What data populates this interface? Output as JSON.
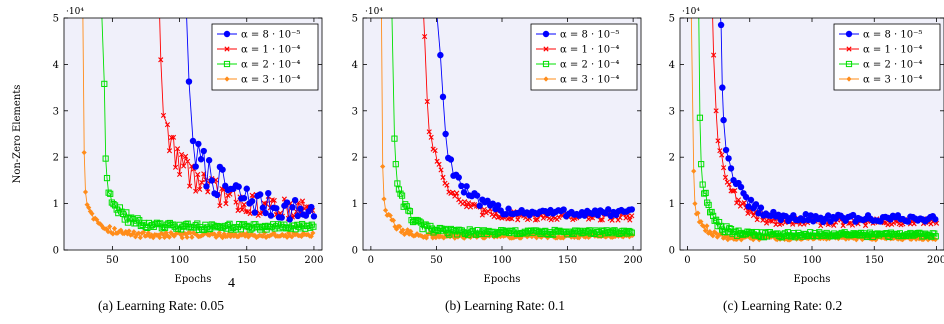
{
  "page_number": "4",
  "shared": {
    "ylabel": "Non-Zero Elements",
    "xlabel": "Epochs",
    "y_exponent": "·10⁴",
    "y_tick_labels": [
      "0",
      "1",
      "2",
      "3",
      "4",
      "5"
    ]
  },
  "colors": {
    "blue": "#0000ff",
    "red": "#ff0000",
    "green": "#00e000",
    "orange": "#ff8c1a",
    "plot_bg": "#f0f0fa"
  },
  "chart_data": [
    {
      "type": "line",
      "caption": "(a) Learning Rate: 0.05",
      "xlabel": "Epochs",
      "ylabel": "Non-Zero Elements",
      "y_multiplier": "10^4",
      "xlim": [
        14,
        206
      ],
      "ylim": [
        0,
        5
      ],
      "x_ticks": [
        50,
        100,
        150,
        200
      ],
      "y_ticks": [
        0,
        1,
        2,
        3,
        4,
        5
      ],
      "legend_position": "top-right",
      "series": [
        {
          "name": "α = 8 · 10⁻⁵",
          "color": "blue",
          "marker": "circle",
          "start": 105,
          "start_y": 5.2,
          "end_y": 0.75,
          "k": 30,
          "noise": 0.22,
          "spike": [
            [
              107,
              3.63
            ],
            [
              110,
              2.35
            ]
          ]
        },
        {
          "name": "α = 1 · 10⁻⁴",
          "color": "red",
          "marker": "x",
          "start": 85,
          "start_y": 5.2,
          "end_y": 0.85,
          "k": 26,
          "noise": 0.2,
          "spike": [
            [
              86,
              4.1
            ],
            [
              88,
              2.9
            ],
            [
              91,
              2.7
            ]
          ]
        },
        {
          "name": "α = 2 · 10⁻⁴",
          "color": "green",
          "marker": "square",
          "start": 42,
          "start_y": 5.2,
          "end_y": 0.5,
          "k": 10,
          "noise": 0.06,
          "spike": [
            [
              44,
              3.58
            ],
            [
              45,
              1.97
            ],
            [
              46,
              1.55
            ]
          ]
        },
        {
          "name": "α = 3 · 10⁻⁴",
          "color": "orange",
          "marker": "diamond",
          "start": 28,
          "start_y": 5.2,
          "end_y": 0.32,
          "k": 10,
          "noise": 0.05,
          "spike": [
            [
              29,
              2.1
            ],
            [
              30,
              1.25
            ]
          ]
        }
      ]
    },
    {
      "type": "line",
      "caption": "(b) Learning Rate: 0.1",
      "xlabel": "Epochs",
      "ylabel": "",
      "y_multiplier": "10^4",
      "xlim": [
        -6,
        206
      ],
      "ylim": [
        0,
        5
      ],
      "x_ticks": [
        0,
        50,
        100,
        150,
        200
      ],
      "y_ticks": [
        0,
        1,
        2,
        3,
        4,
        5
      ],
      "legend_position": "top-right",
      "series": [
        {
          "name": "α = 8 · 10⁻⁵",
          "color": "blue",
          "marker": "circle",
          "start": 50,
          "start_y": 5.2,
          "end_y": 0.8,
          "k": 14,
          "noise": 0.08,
          "spike": [
            [
              53,
              4.2
            ],
            [
              55,
              3.3
            ],
            [
              57,
              2.5
            ]
          ]
        },
        {
          "name": "α = 1 · 10⁻⁴",
          "color": "red",
          "marker": "x",
          "start": 40,
          "start_y": 5.2,
          "end_y": 0.72,
          "k": 14,
          "noise": 0.08,
          "spike": [
            [
              41,
              4.6
            ],
            [
              43,
              3.2
            ]
          ]
        },
        {
          "name": "α = 2 · 10⁻⁴",
          "color": "green",
          "marker": "square",
          "start": 16,
          "start_y": 5.2,
          "end_y": 0.38,
          "k": 9,
          "noise": 0.05,
          "spike": [
            [
              18,
              2.4
            ],
            [
              19,
              1.85
            ]
          ]
        },
        {
          "name": "α = 3 · 10⁻⁴",
          "color": "orange",
          "marker": "diamond",
          "start": 8,
          "start_y": 5.2,
          "end_y": 0.3,
          "k": 8,
          "noise": 0.04,
          "spike": [
            [
              9,
              1.8
            ],
            [
              10,
              1.1
            ]
          ]
        }
      ]
    },
    {
      "type": "line",
      "caption": "(c) Learning Rate: 0.2",
      "xlabel": "Epochs",
      "ylabel": "",
      "y_multiplier": "10^4",
      "xlim": [
        -6,
        206
      ],
      "ylim": [
        0,
        5
      ],
      "x_ticks": [
        0,
        50,
        100,
        150,
        200
      ],
      "y_ticks": [
        0,
        1,
        2,
        3,
        4,
        5
      ],
      "legend_position": "top-right",
      "series": [
        {
          "name": "α = 8 · 10⁻⁵",
          "color": "blue",
          "marker": "circle",
          "start": 26,
          "start_y": 5.2,
          "end_y": 0.68,
          "k": 12,
          "noise": 0.07,
          "spike": [
            [
              27,
              4.85
            ],
            [
              28,
              3.5
            ],
            [
              29,
              2.8
            ]
          ]
        },
        {
          "name": "α = 1 · 10⁻⁴",
          "color": "red",
          "marker": "x",
          "start": 20,
          "start_y": 5.2,
          "end_y": 0.6,
          "k": 12,
          "noise": 0.07,
          "spike": [
            [
              21,
              4.2
            ],
            [
              23,
              3.0
            ]
          ]
        },
        {
          "name": "α = 2 · 10⁻⁴",
          "color": "green",
          "marker": "square",
          "start": 9,
          "start_y": 5.2,
          "end_y": 0.33,
          "k": 8,
          "noise": 0.05,
          "spike": [
            [
              10,
              2.85
            ],
            [
              11,
              1.85
            ]
          ]
        },
        {
          "name": "α = 3 · 10⁻⁴",
          "color": "orange",
          "marker": "diamond",
          "start": 3,
          "start_y": 5.2,
          "end_y": 0.26,
          "k": 8,
          "noise": 0.04,
          "spike": [
            [
              5,
              1.7
            ],
            [
              6,
              1.0
            ]
          ]
        }
      ]
    }
  ]
}
